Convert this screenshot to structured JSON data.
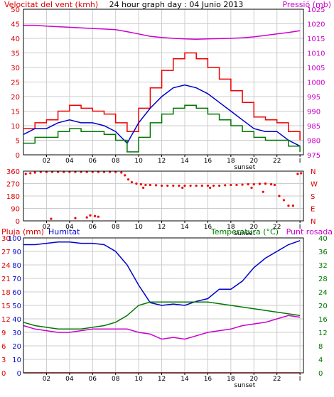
{
  "chart_data": [
    {
      "type": "line",
      "title": "24 hour graph day : 04 Junio 2013",
      "left_axis_label": "Velocitat del vent (kmh)",
      "right_axis_label": "Pressió (mb)",
      "x_ticks": [
        "02",
        "04",
        "06",
        "08",
        "10",
        "12",
        "14",
        "16",
        "18",
        "20",
        "22",
        "I"
      ],
      "x_ticks_num": [
        2,
        4,
        6,
        8,
        10,
        12,
        14,
        16,
        18,
        20,
        22,
        24
      ],
      "xlim": [
        0,
        24.3
      ],
      "sunset_label": "sunset",
      "sunset_hour": 19.2,
      "ylim_left": [
        0,
        50
      ],
      "left_ticks": [
        "0",
        "5",
        "10",
        "15",
        "20",
        "25",
        "30",
        "35",
        "40",
        "45",
        "50"
      ],
      "ylim_right": [
        975,
        1025
      ],
      "right_ticks": [
        "975",
        "980",
        "985",
        "990",
        "995",
        "1000",
        "1005",
        "1010",
        "1015",
        "1020",
        "1025"
      ],
      "series": [
        {
          "name": "",
          "axis": "right",
          "color": "#cc00cc",
          "x": [
            0,
            1,
            2,
            3,
            4,
            5,
            6,
            7,
            8,
            9,
            10,
            11,
            12,
            13,
            14,
            15,
            16,
            17,
            18,
            19,
            20,
            21,
            22,
            23,
            24
          ],
          "y": [
            1019.5,
            1019.5,
            1019.2,
            1019.0,
            1018.8,
            1018.6,
            1018.4,
            1018.2,
            1018.0,
            1017.3,
            1016.5,
            1015.7,
            1015.3,
            1015.0,
            1014.8,
            1014.7,
            1014.8,
            1014.9,
            1015.0,
            1015.2,
            1015.5,
            1016.0,
            1016.5,
            1017.0,
            1017.6
          ]
        },
        {
          "name": "",
          "axis": "left",
          "color": "#ee0000",
          "step": true,
          "x": [
            0,
            1,
            2,
            3,
            4,
            5,
            6,
            7,
            8,
            9,
            10,
            11,
            12,
            13,
            14,
            15,
            16,
            17,
            18,
            19,
            20,
            21,
            22,
            23,
            24
          ],
          "y": [
            9,
            11,
            12,
            15,
            17,
            16,
            15,
            14,
            11,
            8,
            16,
            23,
            29,
            33,
            35,
            33,
            30,
            26,
            22,
            18,
            13,
            12,
            11,
            8,
            5
          ]
        },
        {
          "name": "",
          "axis": "left",
          "color": "#0000cc",
          "x": [
            0,
            1,
            2,
            3,
            4,
            5,
            6,
            7,
            8,
            9,
            10,
            11,
            12,
            13,
            14,
            15,
            16,
            17,
            18,
            19,
            20,
            21,
            22,
            23,
            24
          ],
          "y": [
            7,
            9,
            9,
            11,
            12,
            11,
            11,
            10,
            8,
            4,
            11,
            16,
            20,
            23,
            24,
            23,
            21,
            18,
            15,
            12,
            9,
            8,
            8,
            5,
            3
          ]
        },
        {
          "name": "",
          "axis": "left",
          "color": "#007700",
          "step": true,
          "x": [
            0,
            1,
            2,
            3,
            4,
            5,
            6,
            7,
            8,
            9,
            10,
            11,
            12,
            13,
            14,
            15,
            16,
            17,
            18,
            19,
            20,
            21,
            22,
            23,
            24
          ],
          "y": [
            4,
            6,
            6,
            8,
            9,
            8,
            8,
            7,
            5,
            1,
            6,
            11,
            14,
            16,
            17,
            16,
            14,
            12,
            10,
            8,
            6,
            5,
            5,
            3,
            1
          ]
        }
      ]
    },
    {
      "type": "scatter",
      "x_ticks": [
        "02",
        "04",
        "06",
        "08",
        "10",
        "12",
        "14",
        "16",
        "18",
        "20",
        "22",
        "I"
      ],
      "xlim": [
        0,
        24.3
      ],
      "sunset_label": "sunset",
      "ylim": [
        0,
        360
      ],
      "left_ticks": [
        "0",
        "90",
        "180",
        "270",
        "360"
      ],
      "right_labels": [
        "N",
        "W",
        "S",
        "E",
        "N"
      ],
      "series": [
        {
          "name": "",
          "color": "#ee0000",
          "x": [
            0.2,
            0.6,
            1.0,
            1.5,
            2.0,
            2.5,
            3.0,
            3.5,
            4.0,
            4.5,
            5.0,
            5.5,
            6.0,
            6.5,
            7.0,
            7.5,
            8.0,
            8.5,
            4.5,
            5.5,
            6.5,
            5.8,
            6.2,
            2.4,
            8.8,
            9.1,
            9.4,
            9.8,
            10.2,
            10.6,
            11.0,
            11.5,
            12.0,
            12.5,
            13.0,
            13.5,
            14.0,
            14.5,
            15.0,
            15.5,
            16.0,
            16.5,
            17.0,
            17.5,
            18.0,
            18.5,
            19.0,
            19.5,
            20.0,
            20.5,
            21.0,
            21.5,
            21.8,
            22.2,
            22.6,
            23.0,
            23.4,
            23.8,
            24.1,
            10.4,
            13.8,
            16.2,
            19.8,
            20.8
          ],
          "y": [
            340,
            345,
            350,
            355,
            355,
            355,
            355,
            355,
            355,
            355,
            355,
            355,
            355,
            355,
            355,
            355,
            355,
            350,
            20,
            25,
            30,
            40,
            35,
            15,
            330,
            300,
            280,
            270,
            265,
            260,
            260,
            258,
            255,
            255,
            255,
            255,
            255,
            255,
            255,
            255,
            255,
            255,
            255,
            258,
            260,
            260,
            262,
            265,
            265,
            268,
            270,
            265,
            260,
            180,
            150,
            110,
            110,
            340,
            345,
            240,
            240,
            240,
            240,
            210
          ]
        }
      ]
    },
    {
      "type": "line",
      "left_axis_label": "Pluja (mm)",
      "humidity_label": "Humitat",
      "right_axis_label_1": "Temperatura (°C)",
      "right_axis_label_2": "Punt rosada",
      "x_ticks": [
        "02",
        "04",
        "06",
        "08",
        "10",
        "12",
        "14",
        "16",
        "18",
        "20",
        "22",
        "I"
      ],
      "xlim": [
        0,
        24.3
      ],
      "sunset_label": "sunset",
      "ylim_rain": [
        0,
        30
      ],
      "rain_ticks": [
        "0",
        "3",
        "6",
        "9",
        "12",
        "15",
        "18",
        "21",
        "24",
        "27",
        "30"
      ],
      "ylim_humidity": [
        0,
        100
      ],
      "humidity_ticks": [
        "0",
        "10",
        "20",
        "30",
        "40",
        "50",
        "60",
        "70",
        "80",
        "90",
        "100"
      ],
      "ylim_right": [
        0,
        40
      ],
      "right_ticks": [
        "0",
        "4",
        "8",
        "12",
        "16",
        "20",
        "24",
        "28",
        "32",
        "36",
        "40"
      ],
      "series": [
        {
          "name": "",
          "axis": "humidity",
          "color": "#0000cc",
          "x": [
            0,
            1,
            2,
            3,
            4,
            5,
            6,
            7,
            8,
            9,
            10,
            11,
            12,
            13,
            14,
            15,
            16,
            17,
            18,
            19,
            20,
            21,
            22,
            23,
            24
          ],
          "y": [
            95,
            95,
            96,
            97,
            97,
            96,
            96,
            95,
            90,
            80,
            65,
            52,
            50,
            51,
            50,
            53,
            55,
            62,
            62,
            68,
            78,
            85,
            90,
            95,
            98
          ]
        },
        {
          "name": "",
          "axis": "right",
          "color": "#007700",
          "x": [
            0,
            1,
            2,
            3,
            4,
            5,
            6,
            7,
            8,
            9,
            10,
            11,
            12,
            13,
            14,
            15,
            16,
            17,
            18,
            19,
            20,
            21,
            22,
            23,
            24
          ],
          "y": [
            15,
            14,
            13.5,
            13,
            13,
            13,
            13.5,
            14,
            15,
            17,
            20,
            21,
            21,
            21,
            21,
            21,
            21,
            20.5,
            20,
            19.5,
            19,
            18.5,
            18,
            17.5,
            17
          ]
        },
        {
          "name": "",
          "axis": "right",
          "color": "#cc00cc",
          "x": [
            0,
            1,
            2,
            3,
            4,
            5,
            6,
            7,
            8,
            9,
            10,
            11,
            12,
            13,
            14,
            15,
            16,
            17,
            18,
            19,
            20,
            21,
            22,
            23,
            24
          ],
          "y": [
            14,
            13,
            12.5,
            12,
            12,
            12.5,
            13,
            13,
            13,
            13,
            12,
            11.5,
            10,
            10.5,
            10,
            11,
            12,
            12.5,
            13,
            14,
            14.5,
            15,
            16,
            17,
            16.5
          ]
        },
        {
          "name": "",
          "axis": "rain",
          "color": "#ee0000",
          "x": [
            0,
            24
          ],
          "y": [
            0,
            0
          ]
        }
      ]
    }
  ]
}
